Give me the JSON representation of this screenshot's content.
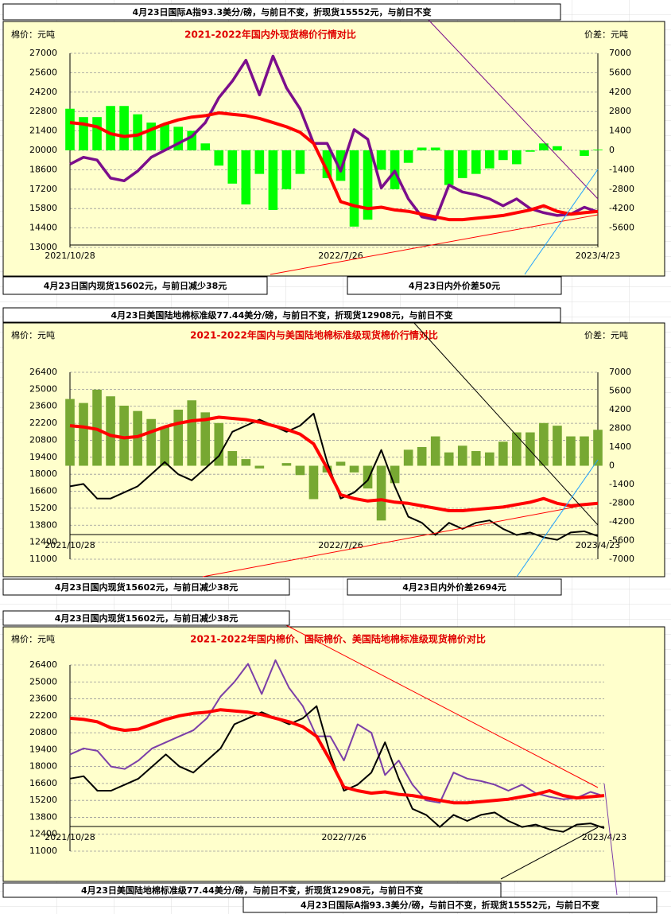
{
  "chart_data": [
    {
      "type": "combo",
      "title": "2021-2022年国内外现货棉价行情对比",
      "ylabel": "棉价：元吨",
      "y2label": "价差：元吨",
      "categories": [
        "2021/10/28",
        null,
        null,
        null,
        null,
        null,
        null,
        null,
        null,
        null,
        null,
        null,
        null,
        null,
        null,
        null,
        null,
        null,
        null,
        null,
        "2022/7/26",
        null,
        null,
        null,
        null,
        null,
        null,
        null,
        null,
        null,
        null,
        null,
        null,
        null,
        null,
        null,
        null,
        null,
        null,
        "2023/4/23"
      ],
      "ylim": [
        13000,
        27000
      ],
      "yticks": [
        13000,
        14400,
        15800,
        17200,
        18600,
        20000,
        21400,
        22800,
        24200,
        25600,
        27000
      ],
      "y2lim": [
        -7000,
        7000
      ],
      "y2ticks": [
        -5600,
        -4200,
        -2800,
        -1400,
        0,
        1400,
        2800,
        4200,
        5600,
        7000
      ],
      "grid": true,
      "series": [
        {
          "type": "bar",
          "axis": "y2",
          "color": "#00ff00",
          "values": [
            3000,
            2400,
            2400,
            3200,
            3200,
            2600,
            2000,
            1900,
            1700,
            1400,
            500,
            -1100,
            -2400,
            -3900,
            -1700,
            -4300,
            -2800,
            -1700,
            0,
            -2000,
            -2200,
            -5500,
            -5000,
            -1400,
            -2800,
            -900,
            200,
            200,
            -2500,
            -2000,
            -1700,
            -1300,
            -700,
            -1000,
            -100,
            500,
            300,
            0,
            -400,
            50
          ]
        },
        {
          "type": "line",
          "color": "#7b0e8c",
          "values": [
            19000,
            19500,
            19300,
            18000,
            17800,
            18500,
            19500,
            20000,
            20500,
            21000,
            22000,
            23800,
            25000,
            26500,
            24000,
            26800,
            24500,
            23000,
            20500,
            20500,
            18500,
            21500,
            20800,
            17300,
            18500,
            16500,
            15200,
            15000,
            17500,
            17000,
            16800,
            16500,
            16000,
            16500,
            15800,
            15500,
            15300,
            15400,
            15900,
            15552
          ]
        },
        {
          "type": "line",
          "color": "#ff0000",
          "values": [
            22000,
            21900,
            21700,
            21200,
            21000,
            21100,
            21500,
            21900,
            22200,
            22400,
            22500,
            22700,
            22600,
            22500,
            22300,
            22000,
            21700,
            21300,
            20500,
            18500,
            16300,
            16000,
            15800,
            15900,
            15700,
            15600,
            15400,
            15200,
            15000,
            15000,
            15100,
            15200,
            15300,
            15500,
            15700,
            16000,
            15600,
            15400,
            15500,
            15602
          ]
        }
      ],
      "annotations": [
        "4月23日国际A指93.3美分/磅，与前日不变，折现货15552元，与前日不变",
        "4月23日国内现货15602元，与前日减少38元",
        "4月23日内外价差50元"
      ]
    },
    {
      "type": "combo",
      "title": "2021-2022年国内与美国陆地棉标准级现货棉价行情对比",
      "ylabel": "棉价：元吨",
      "y2label": "价差：元吨",
      "categories": [
        "2021/10/28",
        null,
        null,
        null,
        null,
        null,
        null,
        null,
        null,
        null,
        null,
        null,
        null,
        null,
        null,
        null,
        null,
        null,
        null,
        null,
        "2022/7/26",
        null,
        null,
        null,
        null,
        null,
        null,
        null,
        null,
        null,
        null,
        null,
        null,
        null,
        null,
        null,
        null,
        null,
        null,
        "2023/4/23"
      ],
      "ylim": [
        11000,
        26400
      ],
      "yticks": [
        11000,
        12400,
        13800,
        15200,
        16600,
        18000,
        19400,
        20800,
        22200,
        23600,
        25000,
        26400
      ],
      "y2lim": [
        -7000,
        7000
      ],
      "y2ticks": [
        -7000,
        -5600,
        -4200,
        -2800,
        -1400,
        0,
        1400,
        2800,
        4200,
        5600,
        7000
      ],
      "grid": true,
      "series": [
        {
          "type": "bar",
          "axis": "y2",
          "color": "#77a832",
          "values": [
            5000,
            4700,
            5700,
            5200,
            4500,
            4100,
            3500,
            2900,
            4200,
            4900,
            4000,
            3200,
            1100,
            500,
            -200,
            0,
            200,
            -700,
            -2500,
            -500,
            300,
            -500,
            -1700,
            -4100,
            -1300,
            1200,
            1400,
            2200,
            1000,
            1500,
            1100,
            1000,
            1800,
            2500,
            2500,
            3200,
            3000,
            2200,
            2200,
            2694
          ]
        },
        {
          "type": "line",
          "color": "#000000",
          "values": [
            17000,
            17200,
            16000,
            16000,
            16500,
            17000,
            18000,
            19000,
            18000,
            17500,
            18500,
            19500,
            21500,
            22000,
            22500,
            22000,
            21500,
            22000,
            23000,
            19000,
            16000,
            16500,
            17500,
            20000,
            17000,
            14500,
            14000,
            13000,
            14000,
            13500,
            14000,
            14200,
            13500,
            13000,
            13200,
            12800,
            12600,
            13200,
            13300,
            12908
          ]
        },
        {
          "type": "line",
          "color": "#ff0000",
          "values": [
            22000,
            21900,
            21700,
            21200,
            21000,
            21100,
            21500,
            21900,
            22200,
            22400,
            22500,
            22700,
            22600,
            22500,
            22300,
            22000,
            21700,
            21300,
            20500,
            18500,
            16300,
            16000,
            15800,
            15900,
            15700,
            15600,
            15400,
            15200,
            15000,
            15000,
            15100,
            15200,
            15300,
            15500,
            15700,
            16000,
            15600,
            15400,
            15500,
            15602
          ]
        }
      ],
      "annotations": [
        "4月23日美国陆地棉标准级77.44美分/磅，与前日不变，折现货12908元，与前日不变",
        "4月23日国内现货15602元，与前日减少38元",
        "4月23日内外价差2694元"
      ]
    },
    {
      "type": "combo",
      "title": "2021-2022年国内棉价、国际棉价、美国陆地棉标准级现货棉价对比",
      "ylabel": "棉价：元吨",
      "categories": [
        "2021/10/28",
        null,
        null,
        null,
        null,
        null,
        null,
        null,
        null,
        null,
        null,
        null,
        null,
        null,
        null,
        null,
        null,
        null,
        null,
        null,
        "2022/7/26",
        null,
        null,
        null,
        null,
        null,
        null,
        null,
        null,
        null,
        null,
        null,
        null,
        null,
        null,
        null,
        null,
        null,
        null,
        "2023/4/23"
      ],
      "ylim": [
        11000,
        26400
      ],
      "yticks": [
        11000,
        12400,
        13800,
        15200,
        16600,
        18000,
        19400,
        20800,
        22200,
        23600,
        25000,
        26400
      ],
      "grid": true,
      "series": [
        {
          "type": "line",
          "color": "#7b3fa8",
          "values": [
            19000,
            19500,
            19300,
            18000,
            17800,
            18500,
            19500,
            20000,
            20500,
            21000,
            22000,
            23800,
            25000,
            26500,
            24000,
            26800,
            24500,
            23000,
            20500,
            20500,
            18500,
            21500,
            20800,
            17300,
            18500,
            16500,
            15200,
            15000,
            17500,
            17000,
            16800,
            16500,
            16000,
            16500,
            15800,
            15500,
            15300,
            15400,
            15900,
            15552
          ]
        },
        {
          "type": "line",
          "color": "#000000",
          "values": [
            17000,
            17200,
            16000,
            16000,
            16500,
            17000,
            18000,
            19000,
            18000,
            17500,
            18500,
            19500,
            21500,
            22000,
            22500,
            22000,
            21500,
            22000,
            23000,
            19000,
            16000,
            16500,
            17500,
            20000,
            17000,
            14500,
            14000,
            13000,
            14000,
            13500,
            14000,
            14200,
            13500,
            13000,
            13200,
            12800,
            12600,
            13200,
            13300,
            12908
          ]
        },
        {
          "type": "line",
          "color": "#ff0000",
          "values": [
            22000,
            21900,
            21700,
            21200,
            21000,
            21100,
            21500,
            21900,
            22200,
            22400,
            22500,
            22700,
            22600,
            22500,
            22300,
            22000,
            21700,
            21300,
            20500,
            18500,
            16300,
            16000,
            15800,
            15900,
            15700,
            15600,
            15400,
            15200,
            15000,
            15000,
            15100,
            15200,
            15300,
            15500,
            15700,
            16000,
            15600,
            15400,
            15500,
            15602
          ]
        }
      ],
      "annotations": [
        "4月23日国内现货15602元，与前日减少38元",
        "4月23日美国陆地棉标准级77.44美分/磅，与前日不变，折现货12908元，与前日不变",
        "4月23日国际A指93.3美分/磅，与前日不变，折现货15552元，与前日不变"
      ]
    }
  ]
}
